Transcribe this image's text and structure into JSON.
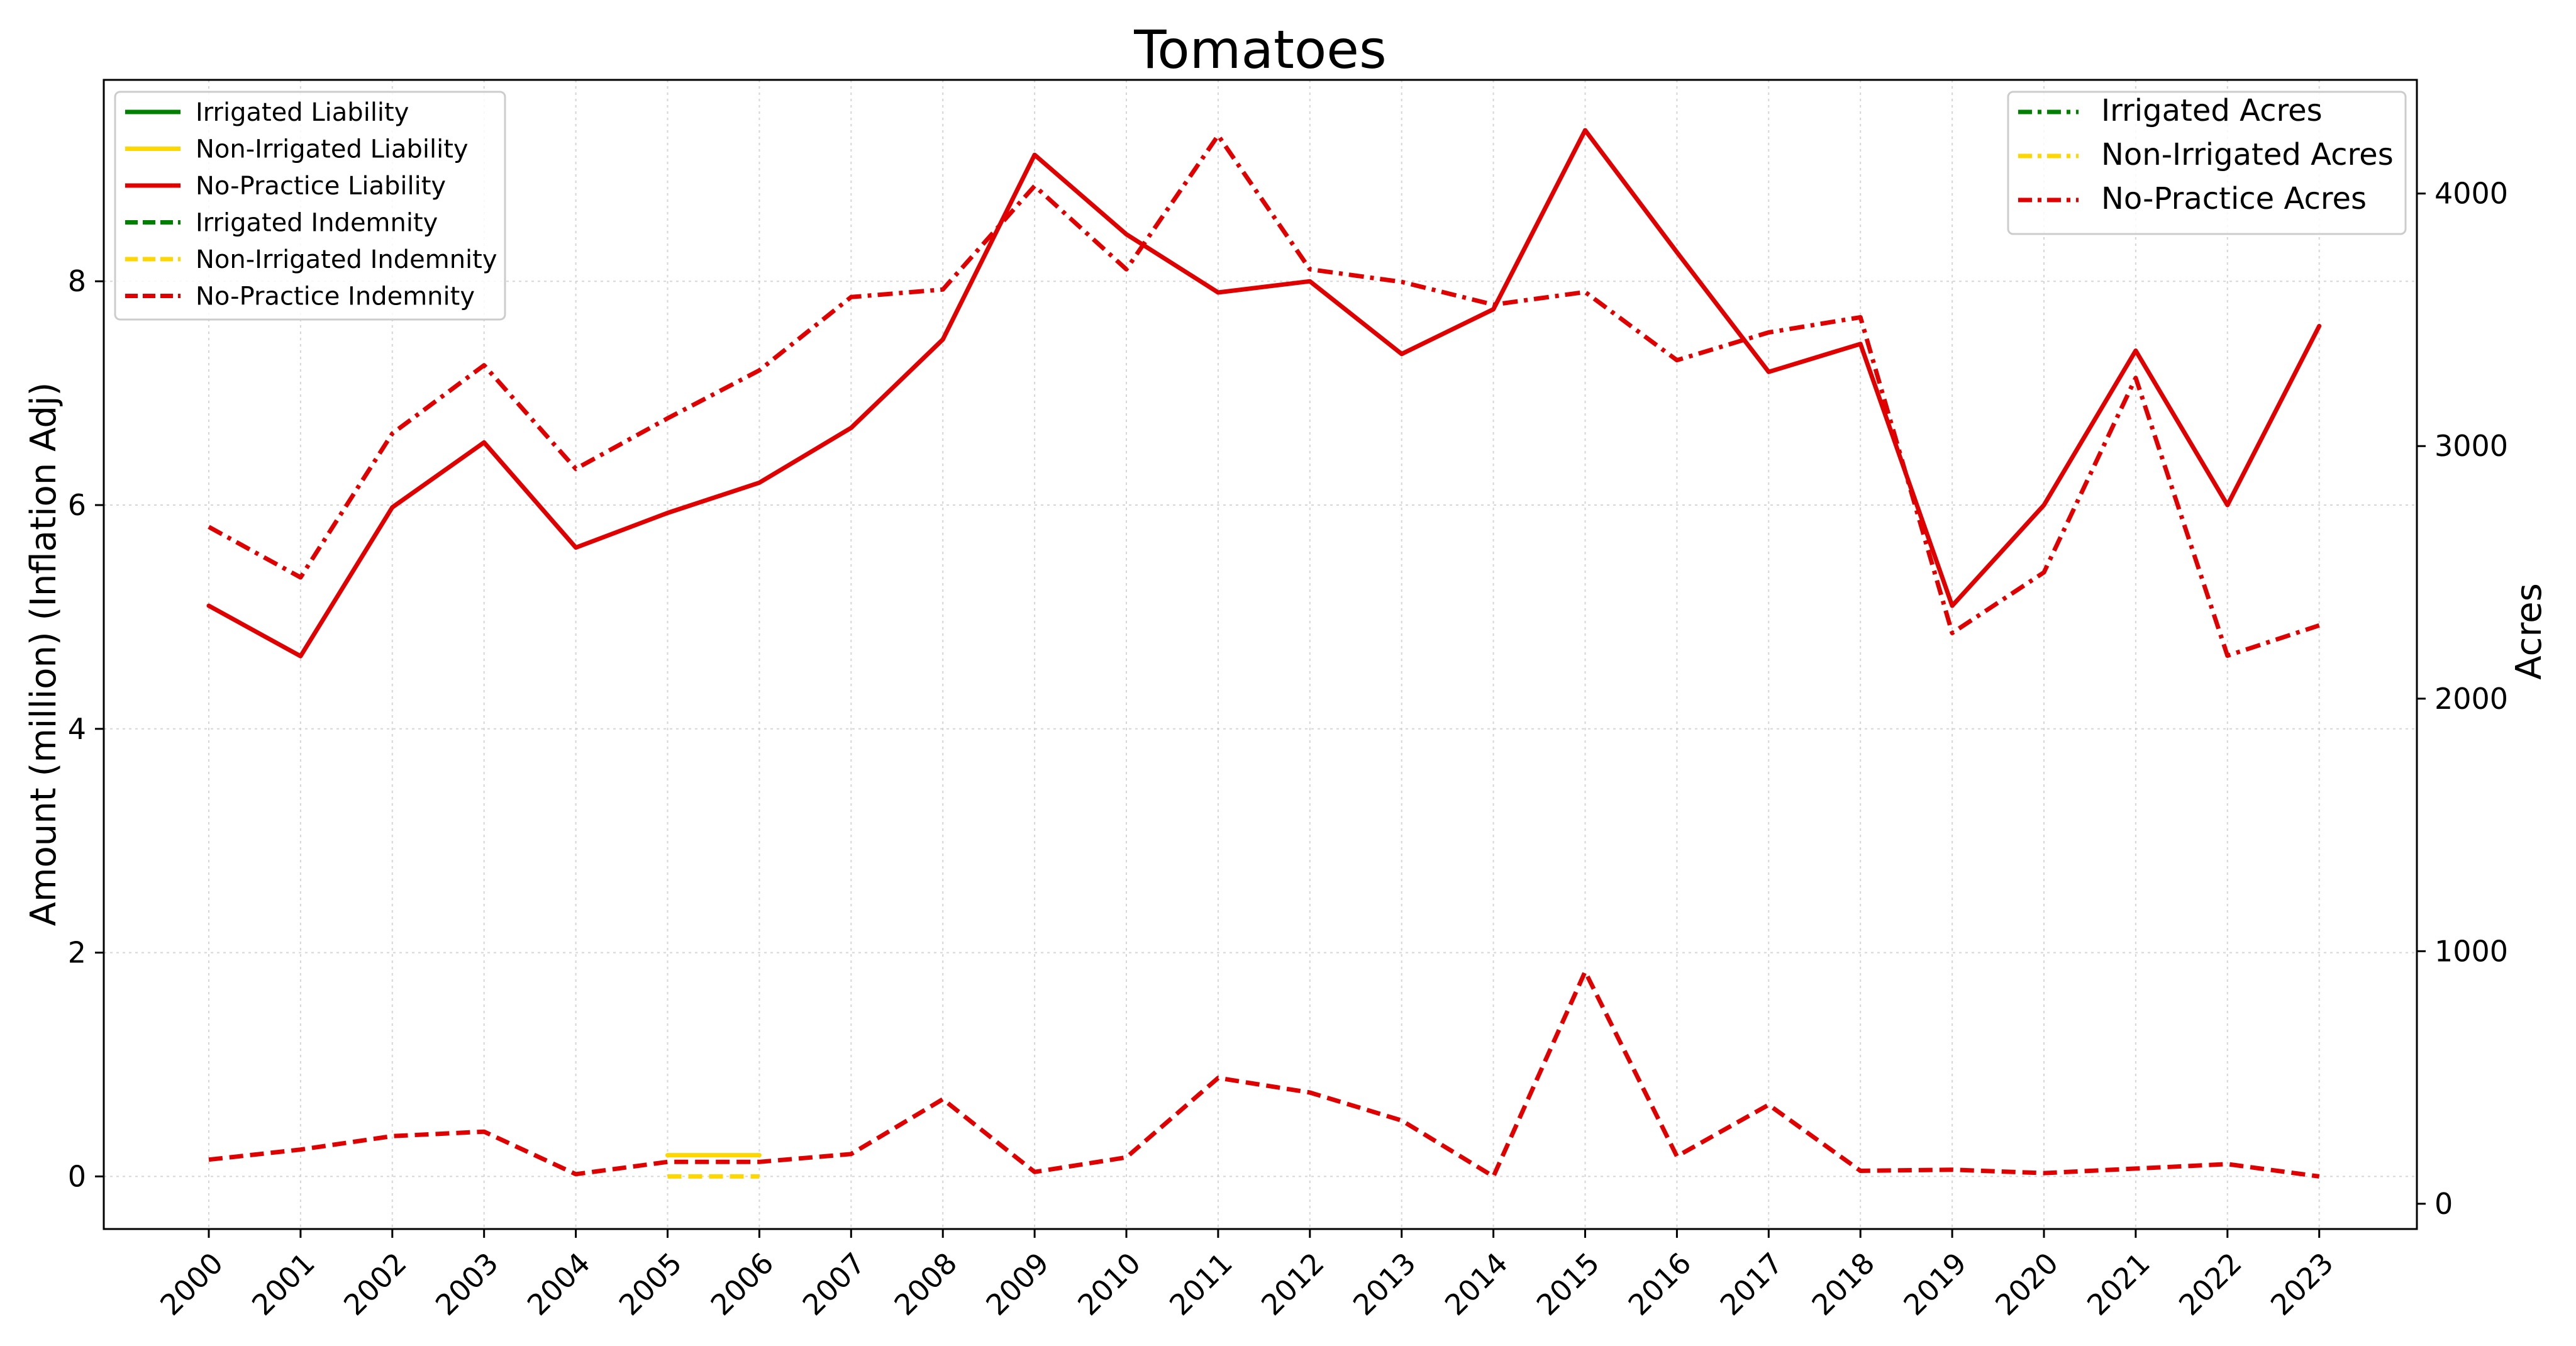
{
  "chart_data": {
    "type": "line",
    "title": "Tomatoes",
    "xlabel": "",
    "ylabel": "Amount (million) (Inflation Adj)",
    "y2label": "Acres",
    "ylim": [
      -0.47,
      9.8
    ],
    "y2lim": [
      -100,
      4450
    ],
    "yticks": [
      0,
      2,
      4,
      6,
      8
    ],
    "y2ticks": [
      0,
      1000,
      2000,
      3000,
      4000
    ],
    "grid": true,
    "categories": [
      "2000",
      "2001",
      "2002",
      "2003",
      "2004",
      "2005",
      "2006",
      "2007",
      "2008",
      "2009",
      "2010",
      "2011",
      "2012",
      "2013",
      "2014",
      "2015",
      "2016",
      "2017",
      "2018",
      "2019",
      "2020",
      "2021",
      "2022",
      "2023"
    ],
    "legend_left": {
      "placement": "upper-left",
      "entries": [
        {
          "label": "Irrigated Liability",
          "color": "#008000",
          "style": "solid"
        },
        {
          "label": "Non-Irrigated Liability",
          "color": "#FFD700",
          "style": "solid"
        },
        {
          "label": "No-Practice Liability",
          "color": "#E00000",
          "style": "solid"
        },
        {
          "label": "Irrigated Indemnity",
          "color": "#008000",
          "style": "dashed"
        },
        {
          "label": "Non-Irrigated Indemnity",
          "color": "#FFD700",
          "style": "dashed"
        },
        {
          "label": "No-Practice Indemnity",
          "color": "#E00000",
          "style": "dashed"
        }
      ]
    },
    "legend_right": {
      "placement": "upper-right",
      "entries": [
        {
          "label": "Irrigated Acres",
          "color": "#008000",
          "style": "dashdot"
        },
        {
          "label": "Non-Irrigated Acres",
          "color": "#FFD700",
          "style": "dashdot"
        },
        {
          "label": "No-Practice Acres",
          "color": "#E00000",
          "style": "dashdot"
        }
      ]
    },
    "series": [
      {
        "name": "Non-Irrigated Liability",
        "axis": "left",
        "color": "#FFD700",
        "style": "solid",
        "x": [
          "2005",
          "2006"
        ],
        "values": [
          0.19,
          0.19
        ]
      },
      {
        "name": "Non-Irrigated Indemnity",
        "axis": "left",
        "color": "#FFD700",
        "style": "dashed",
        "x": [
          "2005",
          "2006"
        ],
        "values": [
          0.0,
          0.0
        ]
      },
      {
        "name": "No-Practice Liability",
        "axis": "left",
        "color": "#E00000",
        "style": "solid",
        "x": [
          "2000",
          "2001",
          "2002",
          "2003",
          "2004",
          "2005",
          "2006",
          "2007",
          "2008",
          "2009",
          "2010",
          "2011",
          "2012",
          "2013",
          "2014",
          "2015",
          "2016",
          "2017",
          "2018",
          "2019",
          "2020",
          "2021",
          "2022",
          "2023"
        ],
        "values": [
          5.1,
          4.65,
          5.98,
          6.56,
          5.62,
          5.93,
          6.2,
          6.69,
          7.48,
          9.13,
          8.42,
          7.9,
          8.0,
          7.35,
          7.75,
          9.35,
          8.26,
          7.19,
          7.44,
          5.1,
          6.0,
          7.38,
          6.0,
          7.6
        ]
      },
      {
        "name": "No-Practice Indemnity",
        "axis": "left",
        "color": "#E00000",
        "style": "dashed",
        "x": [
          "2000",
          "2001",
          "2002",
          "2003",
          "2004",
          "2005",
          "2006",
          "2007",
          "2008",
          "2009",
          "2010",
          "2011",
          "2012",
          "2013",
          "2014",
          "2015",
          "2016",
          "2017",
          "2018",
          "2019",
          "2020",
          "2021",
          "2022",
          "2023"
        ],
        "values": [
          0.15,
          0.24,
          0.36,
          0.4,
          0.02,
          0.13,
          0.13,
          0.2,
          0.69,
          0.04,
          0.17,
          0.88,
          0.75,
          0.5,
          0.0,
          1.83,
          0.18,
          0.64,
          0.05,
          0.06,
          0.03,
          0.07,
          0.11,
          0.0
        ]
      },
      {
        "name": "No-Practice Acres",
        "axis": "right",
        "color": "#E00000",
        "style": "dashdot",
        "x": [
          "2000",
          "2001",
          "2002",
          "2003",
          "2004",
          "2005",
          "2006",
          "2007",
          "2008",
          "2009",
          "2010",
          "2011",
          "2012",
          "2013",
          "2014",
          "2015",
          "2016",
          "2017",
          "2018",
          "2019",
          "2020",
          "2021",
          "2022",
          "2023"
        ],
        "values": [
          2680,
          2480,
          3050,
          3320,
          2910,
          3110,
          3300,
          3590,
          3620,
          4030,
          3700,
          4230,
          3700,
          3650,
          3560,
          3610,
          3340,
          3450,
          3510,
          2260,
          2500,
          3270,
          2170,
          2290
        ]
      }
    ]
  }
}
